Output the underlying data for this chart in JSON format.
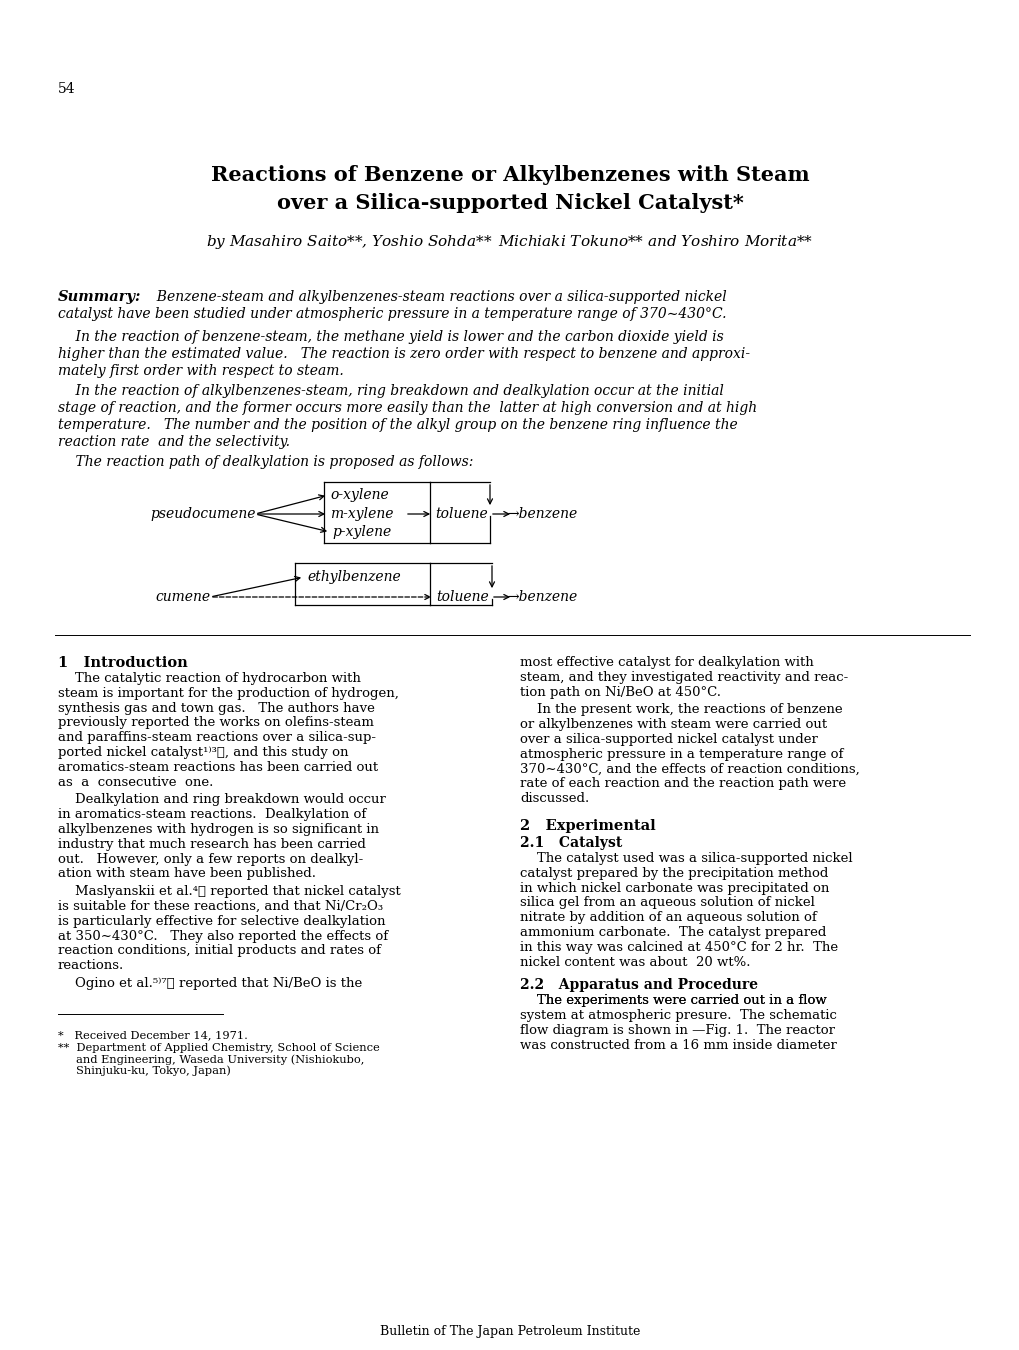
{
  "page_number": "54",
  "title_line1": "Reactions of Benzene or Alkylbenzenes with Steam",
  "title_line2": "over a Silica-supported Nickel Catalyst*",
  "authors": "by Masahiro Saito**, Yoshio Sohda**₃ Michiaki Tokuno** and Yoshiro Morita**",
  "bg_color": "#ffffff",
  "text_color": "#000000",
  "footer": "Bulletin of The Japan Petroleum Institute"
}
